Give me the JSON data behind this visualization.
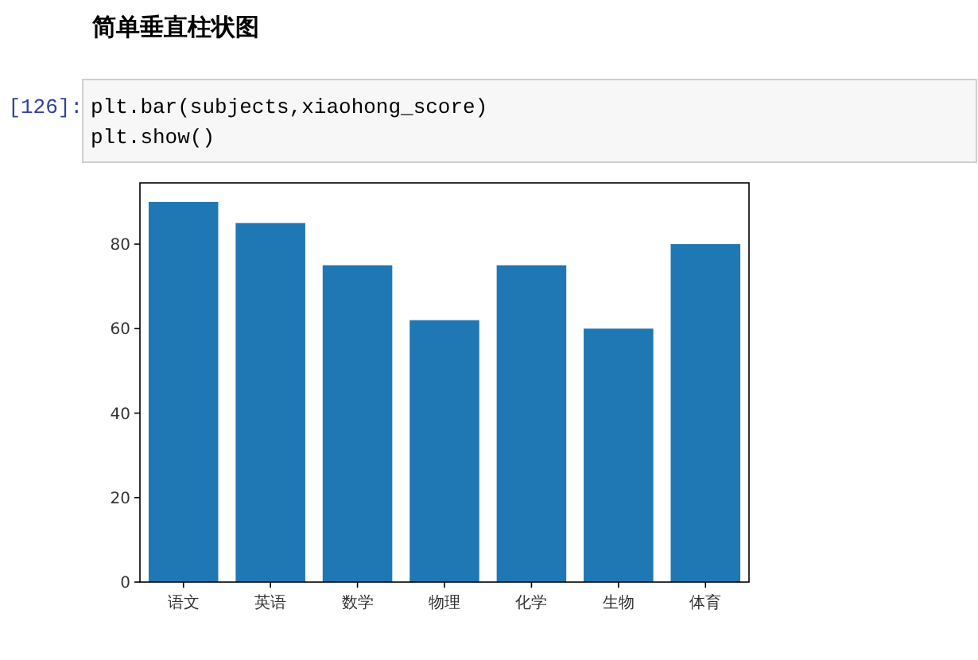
{
  "chart_data": {
    "type": "bar",
    "title": "简单垂直柱状图",
    "annotations": [
      "[126]:",
      "plt.bar(subjects,xiaohong_score)",
      "plt.show()"
    ],
    "categories": [
      "语文",
      "英语",
      "数学",
      "物理",
      "化学",
      "生物",
      "体育"
    ],
    "values": [
      90,
      85,
      75,
      62,
      75,
      60,
      80
    ],
    "color": "#1f77b4",
    "ylim": [
      0,
      94.5
    ],
    "yticks": [
      0,
      20,
      40,
      60,
      80
    ],
    "grid": false
  }
}
